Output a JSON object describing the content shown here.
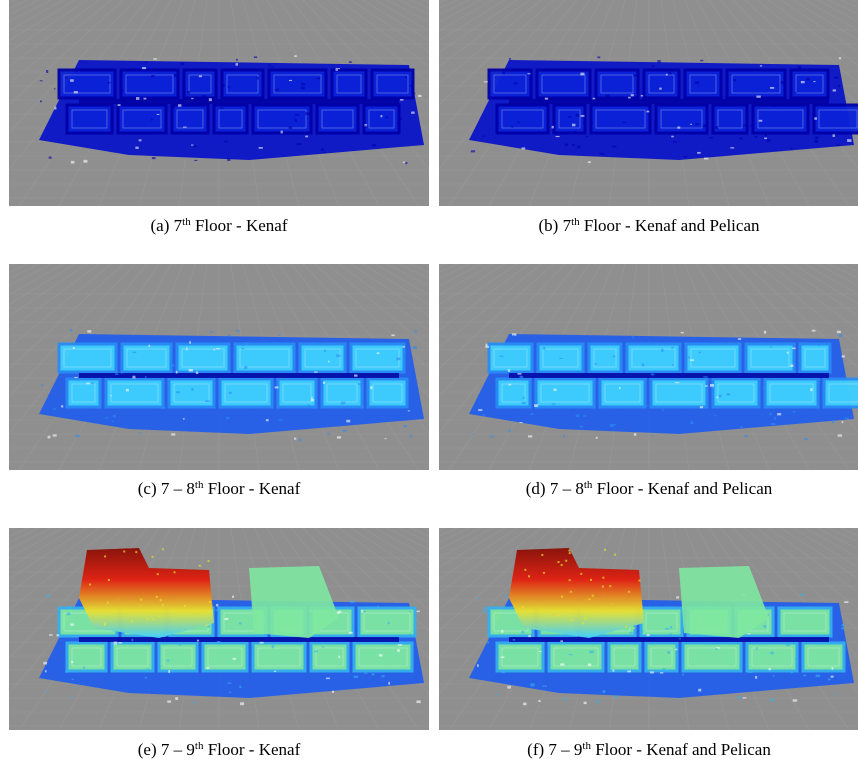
{
  "figure": {
    "panels": [
      {
        "id": "a",
        "caption": {
          "label": "(a)",
          "prefix": "7",
          "sup": "th",
          "suffix": "Floor - Kenaf"
        },
        "palette": "blue"
      },
      {
        "id": "b",
        "caption": {
          "label": "(b)",
          "prefix": "7",
          "sup": "th",
          "suffix": "Floor - Kenaf and Pelican"
        },
        "palette": "blue"
      },
      {
        "id": "c",
        "caption": {
          "label": "(c)",
          "prefix": "7 – 8",
          "sup": "th",
          "suffix": "Floor - Kenaf"
        },
        "palette": "cyan-blue"
      },
      {
        "id": "d",
        "caption": {
          "label": "(d)",
          "prefix": "7 – 8",
          "sup": "th",
          "suffix": "Floor - Kenaf and Pelican"
        },
        "palette": "cyan-blue"
      },
      {
        "id": "e",
        "caption": {
          "label": "(e)",
          "prefix": "7 – 9",
          "sup": "th",
          "suffix": "Floor - Kenaf"
        },
        "palette": "jet"
      },
      {
        "id": "f",
        "caption": {
          "label": "(f)",
          "prefix": "7 – 9",
          "sup": "th",
          "suffix": "Floor - Kenaf and Pelican"
        },
        "palette": "jet"
      }
    ],
    "colors": {
      "background": "#8f8f8f",
      "grid": "#9c9c9c",
      "deep_blue": "#0a14c8",
      "blue": "#1e5cf0",
      "cyan": "#3fd0ff",
      "green": "#7ee8a0",
      "yellow": "#e8e030",
      "red": "#e02010",
      "dark_red": "#8a1008"
    }
  }
}
